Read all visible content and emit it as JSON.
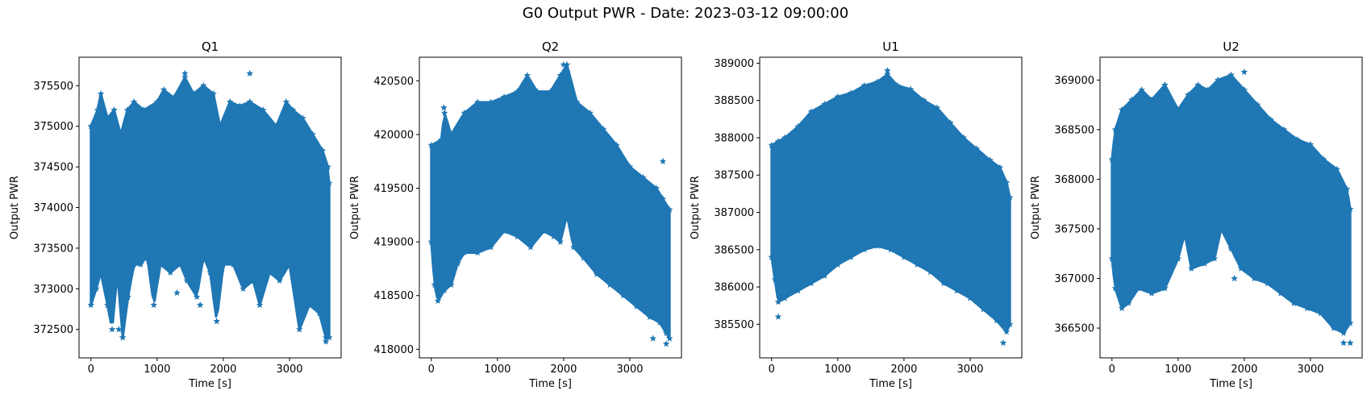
{
  "figure": {
    "title": "G0 Output PWR - Date: 2023-03-12 09:00:00",
    "series_color": "#1f77b4",
    "marker": "star"
  },
  "chart_data": [
    {
      "type": "scatter",
      "title": "Q1",
      "xlabel": "Time [s]",
      "ylabel": "Output PWR",
      "xlim": [
        -180,
        3780
      ],
      "ylim": [
        372150,
        375850
      ],
      "xticks": [
        0,
        1000,
        2000,
        3000
      ],
      "yticks": [
        372500,
        373000,
        373500,
        374000,
        374500,
        375000,
        375500
      ],
      "grid": false,
      "x_range": [
        0,
        3600
      ],
      "upper_envelope": [
        [
          0,
          375000
        ],
        [
          100,
          375200
        ],
        [
          150,
          375400
        ],
        [
          250,
          375100
        ],
        [
          350,
          375200
        ],
        [
          450,
          374900
        ],
        [
          550,
          375200
        ],
        [
          650,
          375300
        ],
        [
          800,
          375200
        ],
        [
          1000,
          375300
        ],
        [
          1100,
          375450
        ],
        [
          1250,
          375350
        ],
        [
          1420,
          375600
        ],
        [
          1550,
          375400
        ],
        [
          1700,
          375500
        ],
        [
          1850,
          375400
        ],
        [
          1950,
          375000
        ],
        [
          2100,
          375300
        ],
        [
          2250,
          375250
        ],
        [
          2400,
          375300
        ],
        [
          2600,
          375200
        ],
        [
          2800,
          375000
        ],
        [
          2950,
          375300
        ],
        [
          3050,
          375200
        ],
        [
          3200,
          375100
        ],
        [
          3350,
          374900
        ],
        [
          3500,
          374700
        ],
        [
          3580,
          374500
        ],
        [
          3600,
          374300
        ]
      ],
      "lower_envelope": [
        [
          0,
          372800
        ],
        [
          80,
          373000
        ],
        [
          150,
          373200
        ],
        [
          250,
          372800
        ],
        [
          320,
          372500
        ],
        [
          400,
          373200
        ],
        [
          480,
          372400
        ],
        [
          560,
          372900
        ],
        [
          650,
          373300
        ],
        [
          750,
          373300
        ],
        [
          850,
          373400
        ],
        [
          950,
          372800
        ],
        [
          1050,
          373300
        ],
        [
          1200,
          373200
        ],
        [
          1350,
          373300
        ],
        [
          1450,
          373100
        ],
        [
          1600,
          372900
        ],
        [
          1700,
          373400
        ],
        [
          1800,
          373200
        ],
        [
          1900,
          372600
        ],
        [
          2000,
          373300
        ],
        [
          2150,
          373300
        ],
        [
          2300,
          373000
        ],
        [
          2450,
          373100
        ],
        [
          2550,
          372800
        ],
        [
          2700,
          373200
        ],
        [
          2850,
          373100
        ],
        [
          3000,
          373300
        ],
        [
          3150,
          372500
        ],
        [
          3300,
          372800
        ],
        [
          3450,
          372700
        ],
        [
          3550,
          372400
        ],
        [
          3600,
          372400
        ]
      ],
      "outliers": [
        [
          420,
          372500
        ],
        [
          480,
          372400
        ],
        [
          1420,
          375650
        ],
        [
          2400,
          375650
        ],
        [
          1300,
          372950
        ],
        [
          1650,
          372800
        ],
        [
          3550,
          372350
        ]
      ]
    },
    {
      "type": "scatter",
      "title": "Q2",
      "xlabel": "Time [s]",
      "ylabel": "Output PWR",
      "xlim": [
        -180,
        3780
      ],
      "ylim": [
        417920,
        420720
      ],
      "xticks": [
        0,
        1000,
        2000,
        3000
      ],
      "yticks": [
        418000,
        418500,
        419000,
        419500,
        420000,
        420500
      ],
      "grid": false,
      "x_range": [
        0,
        3600
      ],
      "upper_envelope": [
        [
          0,
          419900
        ],
        [
          150,
          419950
        ],
        [
          200,
          420200
        ],
        [
          300,
          420000
        ],
        [
          500,
          420200
        ],
        [
          700,
          420300
        ],
        [
          900,
          420300
        ],
        [
          1100,
          420350
        ],
        [
          1300,
          420400
        ],
        [
          1450,
          420550
        ],
        [
          1600,
          420400
        ],
        [
          1800,
          420400
        ],
        [
          1950,
          420550
        ],
        [
          2050,
          420650
        ],
        [
          2200,
          420300
        ],
        [
          2400,
          420200
        ],
        [
          2600,
          420050
        ],
        [
          2800,
          419900
        ],
        [
          3000,
          419700
        ],
        [
          3200,
          419600
        ],
        [
          3400,
          419500
        ],
        [
          3500,
          419400
        ],
        [
          3600,
          419300
        ]
      ],
      "lower_envelope": [
        [
          0,
          419000
        ],
        [
          50,
          418600
        ],
        [
          100,
          418450
        ],
        [
          200,
          418550
        ],
        [
          300,
          418600
        ],
        [
          400,
          418800
        ],
        [
          500,
          418900
        ],
        [
          700,
          418900
        ],
        [
          900,
          418950
        ],
        [
          1100,
          419100
        ],
        [
          1300,
          419050
        ],
        [
          1500,
          418950
        ],
        [
          1700,
          419100
        ],
        [
          1850,
          419050
        ],
        [
          1950,
          419000
        ],
        [
          2050,
          419250
        ],
        [
          2150,
          418950
        ],
        [
          2300,
          418850
        ],
        [
          2500,
          418700
        ],
        [
          2700,
          418600
        ],
        [
          2900,
          418500
        ],
        [
          3100,
          418400
        ],
        [
          3300,
          418300
        ],
        [
          3450,
          418250
        ],
        [
          3550,
          418150
        ],
        [
          3600,
          418100
        ]
      ],
      "outliers": [
        [
          2000,
          420650
        ],
        [
          3350,
          418100
        ],
        [
          3550,
          418050
        ],
        [
          3500,
          419750
        ],
        [
          190,
          420250
        ]
      ]
    },
    {
      "type": "scatter",
      "title": "U1",
      "xlabel": "Time [s]",
      "ylabel": "Output PWR",
      "xlim": [
        -180,
        3780
      ],
      "ylim": [
        385050,
        389080
      ],
      "xticks": [
        0,
        1000,
        2000,
        3000
      ],
      "yticks": [
        385500,
        386000,
        386500,
        387000,
        387500,
        388000,
        388500,
        389000
      ],
      "grid": false,
      "x_range": [
        0,
        3600
      ],
      "upper_envelope": [
        [
          0,
          387900
        ],
        [
          100,
          387950
        ],
        [
          200,
          388000
        ],
        [
          400,
          388150
        ],
        [
          600,
          388350
        ],
        [
          800,
          388450
        ],
        [
          1000,
          388550
        ],
        [
          1200,
          388600
        ],
        [
          1400,
          388700
        ],
        [
          1600,
          388750
        ],
        [
          1750,
          388850
        ],
        [
          1900,
          388700
        ],
        [
          2100,
          388650
        ],
        [
          2300,
          388500
        ],
        [
          2500,
          388400
        ],
        [
          2700,
          388200
        ],
        [
          2900,
          388000
        ],
        [
          3100,
          387850
        ],
        [
          3300,
          387700
        ],
        [
          3450,
          387600
        ],
        [
          3550,
          387400
        ],
        [
          3600,
          387200
        ]
      ],
      "lower_envelope": [
        [
          0,
          386400
        ],
        [
          50,
          386100
        ],
        [
          100,
          385800
        ],
        [
          200,
          385850
        ],
        [
          400,
          385950
        ],
        [
          600,
          386050
        ],
        [
          800,
          386150
        ],
        [
          1000,
          386300
        ],
        [
          1200,
          386400
        ],
        [
          1400,
          386500
        ],
        [
          1600,
          386550
        ],
        [
          1800,
          386500
        ],
        [
          2000,
          386400
        ],
        [
          2200,
          386300
        ],
        [
          2400,
          386200
        ],
        [
          2600,
          386050
        ],
        [
          2800,
          385950
        ],
        [
          3000,
          385850
        ],
        [
          3200,
          385700
        ],
        [
          3400,
          385550
        ],
        [
          3550,
          385400
        ],
        [
          3600,
          385500
        ]
      ],
      "outliers": [
        [
          100,
          385600
        ],
        [
          1750,
          388900
        ],
        [
          3500,
          385250
        ],
        [
          3300,
          387650
        ],
        [
          3400,
          387600
        ]
      ]
    },
    {
      "type": "scatter",
      "title": "U2",
      "xlabel": "Time [s]",
      "ylabel": "Output PWR",
      "xlim": [
        -180,
        3780
      ],
      "ylim": [
        366200,
        369230
      ],
      "xticks": [
        0,
        1000,
        2000,
        3000
      ],
      "yticks": [
        366500,
        367000,
        367500,
        368000,
        368500,
        369000
      ],
      "grid": false,
      "x_range": [
        0,
        3600
      ],
      "upper_envelope": [
        [
          0,
          368200
        ],
        [
          50,
          368500
        ],
        [
          150,
          368700
        ],
        [
          300,
          368800
        ],
        [
          450,
          368900
        ],
        [
          600,
          368800
        ],
        [
          800,
          368950
        ],
        [
          1000,
          368700
        ],
        [
          1150,
          368850
        ],
        [
          1300,
          368950
        ],
        [
          1450,
          368900
        ],
        [
          1600,
          369000
        ],
        [
          1800,
          369050
        ],
        [
          2000,
          368900
        ],
        [
          2200,
          368750
        ],
        [
          2400,
          368600
        ],
        [
          2600,
          368500
        ],
        [
          2800,
          368400
        ],
        [
          3000,
          368350
        ],
        [
          3200,
          368200
        ],
        [
          3400,
          368100
        ],
        [
          3550,
          367900
        ],
        [
          3600,
          367700
        ]
      ],
      "lower_envelope": [
        [
          0,
          367200
        ],
        [
          50,
          366900
        ],
        [
          150,
          366700
        ],
        [
          250,
          366750
        ],
        [
          400,
          366900
        ],
        [
          600,
          366850
        ],
        [
          800,
          366900
        ],
        [
          1000,
          367200
        ],
        [
          1100,
          367450
        ],
        [
          1200,
          367100
        ],
        [
          1400,
          367150
        ],
        [
          1550,
          367200
        ],
        [
          1650,
          367500
        ],
        [
          1800,
          367300
        ],
        [
          1950,
          367100
        ],
        [
          2150,
          367000
        ],
        [
          2350,
          366950
        ],
        [
          2550,
          366850
        ],
        [
          2750,
          366750
        ],
        [
          2950,
          366700
        ],
        [
          3150,
          366650
        ],
        [
          3350,
          366500
        ],
        [
          3500,
          366450
        ],
        [
          3600,
          366550
        ]
      ],
      "outliers": [
        [
          1800,
          369050
        ],
        [
          2000,
          369080
        ],
        [
          1850,
          367000
        ],
        [
          3500,
          366350
        ],
        [
          3600,
          366350
        ]
      ]
    }
  ]
}
